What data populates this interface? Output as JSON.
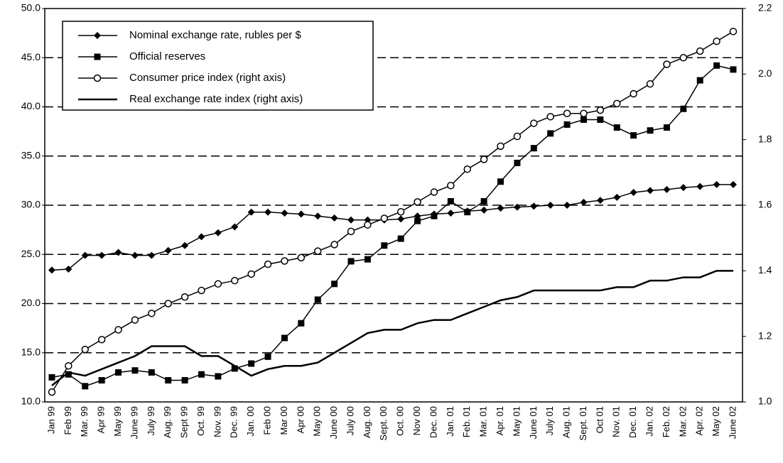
{
  "chart_data": {
    "type": "line",
    "categories": [
      "Jan 99",
      "Feb 99",
      "Mar. 99",
      "Apr 99",
      "May 99",
      "June 99",
      "July 99",
      "Aug. 99",
      "Sept 99",
      "Oct. 99",
      "Nov. 99",
      "Dec. 99",
      "Jan. 00",
      "Feb 00",
      "Mar 00",
      "Apr 00",
      "May 00",
      "June 00",
      "July 00",
      "Aug. 00",
      "Sept. 00",
      "Oct. 00",
      "Nov 00",
      "Dec. 00",
      "Jan. 01",
      "Feb. 01",
      "Mar. 01",
      "Apr. 01",
      "May 01",
      "June 01",
      "July 01",
      "Aug. 01",
      "Sept. 01",
      "Oct 01",
      "Nov. 01",
      "Dec. 01",
      "Jan. 02",
      "Feb. 02",
      "Mar. 02",
      "Apr. 02",
      "May 02",
      "June 02"
    ],
    "series": [
      {
        "name": "Nominal exchange rate, rubles per $",
        "color": "#000000",
        "marker": "diamond",
        "values": [
          23.4,
          23.5,
          24.9,
          24.9,
          25.2,
          24.9,
          24.9,
          25.4,
          25.9,
          26.8,
          27.2,
          27.8,
          29.3,
          29.3,
          29.2,
          29.1,
          28.9,
          28.7,
          28.5,
          28.5,
          28.5,
          28.6,
          28.9,
          29.1,
          29.2,
          29.4,
          29.5,
          29.7,
          29.8,
          29.9,
          30.0,
          30.0,
          30.3,
          30.5,
          30.8,
          31.3,
          31.5,
          31.6,
          31.8,
          31.9,
          32.1,
          32.1
        ]
      },
      {
        "name": "Official reserves",
        "color": "#000000",
        "marker": "square",
        "values": [
          12.5,
          12.8,
          11.6,
          12.2,
          13.0,
          13.2,
          13.0,
          12.2,
          12.2,
          12.8,
          12.6,
          13.4,
          13.9,
          14.6,
          16.5,
          18.0,
          20.4,
          22.0,
          24.3,
          24.5,
          25.9,
          26.6,
          28.4,
          28.9,
          30.4,
          29.3,
          30.4,
          32.4,
          34.3,
          35.8,
          37.3,
          38.2,
          38.7,
          38.7,
          37.9,
          37.1,
          37.6,
          37.9,
          39.8,
          42.7,
          44.2,
          43.8
        ]
      },
      {
        "name": "Consumer price index (right axis)",
        "color": "#000000",
        "marker": "circle",
        "axis": "y2",
        "values": [
          1.03,
          1.11,
          1.16,
          1.19,
          1.22,
          1.25,
          1.27,
          1.3,
          1.32,
          1.34,
          1.36,
          1.37,
          1.39,
          1.42,
          1.43,
          1.44,
          1.46,
          1.48,
          1.52,
          1.54,
          1.56,
          1.58,
          1.61,
          1.64,
          1.66,
          1.71,
          1.74,
          1.78,
          1.81,
          1.85,
          1.87,
          1.88,
          1.88,
          1.89,
          1.91,
          1.94,
          1.97,
          2.03,
          2.05,
          2.07,
          2.1,
          2.13
        ]
      },
      {
        "name": "Real exchange rate index (right axis)",
        "color": "#000000",
        "axis": "y2",
        "values": [
          1.05,
          1.09,
          1.08,
          1.1,
          1.12,
          1.14,
          1.17,
          1.17,
          1.17,
          1.14,
          1.14,
          1.11,
          1.08,
          1.1,
          1.11,
          1.11,
          1.12,
          1.15,
          1.18,
          1.21,
          1.22,
          1.22,
          1.24,
          1.25,
          1.25,
          1.27,
          1.29,
          1.31,
          1.32,
          1.34,
          1.34,
          1.34,
          1.34,
          1.34,
          1.35,
          1.35,
          1.37,
          1.37,
          1.38,
          1.38,
          1.4,
          1.4
        ]
      }
    ],
    "ylim": [
      10,
      50
    ],
    "yticks": [
      {
        "value": 10,
        "label": "10.0"
      },
      {
        "value": 15,
        "label": "15.0"
      },
      {
        "value": 20,
        "label": "20.0"
      },
      {
        "value": 25,
        "label": "25.0"
      },
      {
        "value": 30,
        "label": "30.0"
      },
      {
        "value": 35,
        "label": "35.0"
      },
      {
        "value": 40,
        "label": "40.0"
      },
      {
        "value": 45,
        "label": "45.0"
      },
      {
        "value": 50,
        "label": "50.0"
      }
    ],
    "y2lim": [
      1,
      2.2
    ],
    "y2ticks": [
      {
        "value": 1,
        "label": "1.0"
      },
      1.2,
      1.4,
      1.6,
      1.8,
      {
        "value": 2,
        "label": "2.0"
      },
      2.2
    ],
    "grid": true,
    "legend": "top-left"
  }
}
